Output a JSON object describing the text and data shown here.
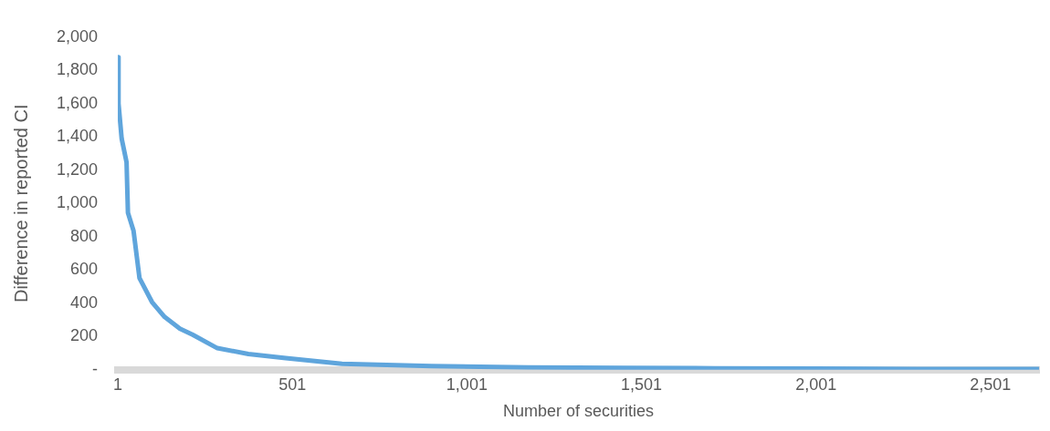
{
  "chart_data": {
    "type": "line",
    "xlabel": "Number of securities",
    "ylabel": "Difference in reported CI",
    "xlim": [
      1,
      2640
    ],
    "xticks": [
      1,
      501,
      {
        "value": 1001,
        "label": "1,001"
      },
      {
        "value": 1501,
        "label": "1,501"
      },
      {
        "value": 2001,
        "label": "2,001"
      },
      {
        "value": 2501,
        "label": "2,501"
      }
    ],
    "ylim": [
      0,
      2000
    ],
    "yticks": [
      {
        "value": 0,
        "label": "-"
      },
      200,
      400,
      600,
      800,
      {
        "value": 1000,
        "label": "1,000"
      },
      {
        "value": 1200,
        "label": "1,200"
      },
      {
        "value": 1400,
        "label": "1,400"
      },
      {
        "value": 1600,
        "label": "1,600"
      },
      {
        "value": 1800,
        "label": "1,800"
      },
      {
        "value": 2000,
        "label": "2,000"
      }
    ],
    "grid": false,
    "legend": false,
    "marker": "none",
    "line_style": "solid",
    "series": [
      {
        "color": "#5fa5dc",
        "x": [
          1,
          3,
          12,
          26,
          30,
          46,
          63,
          99,
          135,
          179,
          215,
          286,
          375,
          482,
          643,
          900,
          1177,
          1450,
          1712,
          2000,
          2300,
          2640
        ],
        "values": [
          1880,
          1600,
          1390,
          1248,
          944,
          836,
          552,
          407,
          318,
          247,
          211,
          130,
          95,
          70,
          36,
          22,
          14,
          11,
          9,
          7,
          5,
          4
        ]
      }
    ]
  }
}
